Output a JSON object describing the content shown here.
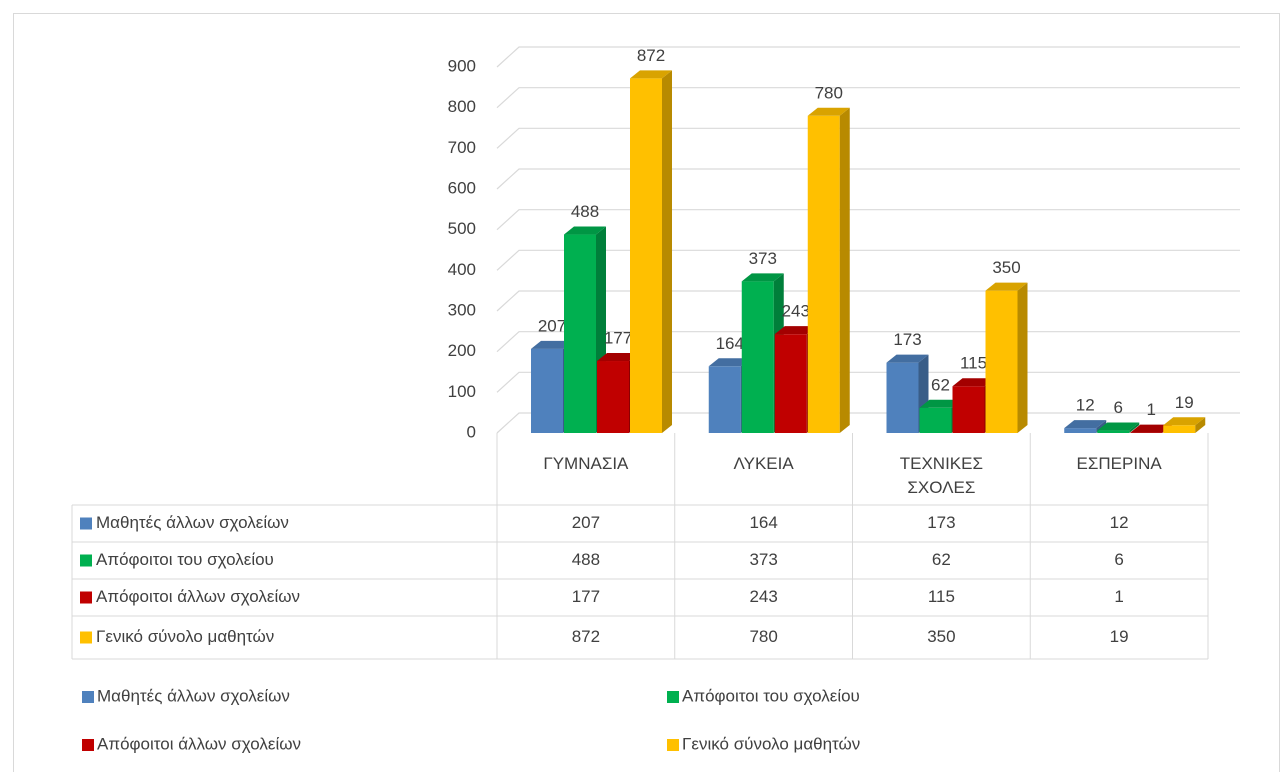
{
  "chart_data": {
    "type": "bar",
    "categories": [
      "ΓΥΜΝΑΣΙΑ",
      "ΛΥΚΕΙΑ",
      "ΤΕΧΝΙΚΕΣ ΣΧΟΛΕΣ",
      "ΕΣΠΕΡΙΝΑ"
    ],
    "series": [
      {
        "name": "Μαθητές άλλων σχολείων",
        "color": "#4f81bd",
        "values": [
          207,
          164,
          173,
          12
        ]
      },
      {
        "name": "Απόφοιτοι του σχολείου",
        "color": "#00b050",
        "values": [
          488,
          373,
          62,
          6
        ]
      },
      {
        "name": "Απόφοιτοι άλλων σχολείων",
        "color": "#c00000",
        "values": [
          177,
          243,
          115,
          1
        ]
      },
      {
        "name": "Γενικό σύνολο μαθητών",
        "color": "#ffc000",
        "values": [
          872,
          780,
          350,
          19
        ]
      }
    ],
    "ylim": [
      0,
      900
    ],
    "yticks": [
      0,
      100,
      200,
      300,
      400,
      500,
      600,
      700,
      800,
      900
    ],
    "grid": true,
    "data_table": true,
    "legend": "bottom"
  }
}
